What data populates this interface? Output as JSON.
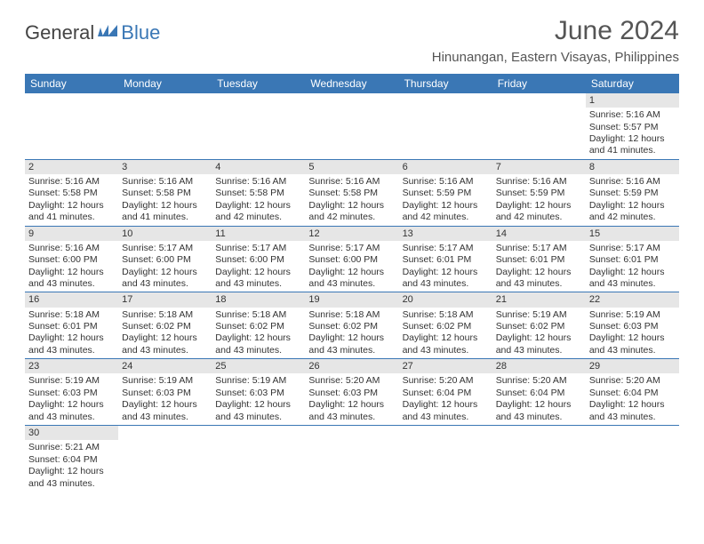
{
  "logo": {
    "part1": "General",
    "part2": "Blue"
  },
  "title": "June 2024",
  "subtitle": "Hinunangan, Eastern Visayas, Philippines",
  "colors": {
    "header_bg": "#3a77b5",
    "header_text": "#ffffff",
    "daynum_bg": "#e6e6e6",
    "border": "#3a77b5",
    "text": "#333333",
    "title_color": "#555555"
  },
  "weekdays": [
    "Sunday",
    "Monday",
    "Tuesday",
    "Wednesday",
    "Thursday",
    "Friday",
    "Saturday"
  ],
  "weeks": [
    [
      null,
      null,
      null,
      null,
      null,
      null,
      {
        "n": "1",
        "sr": "Sunrise: 5:16 AM",
        "ss": "Sunset: 5:57 PM",
        "d1": "Daylight: 12 hours",
        "d2": "and 41 minutes."
      }
    ],
    [
      {
        "n": "2",
        "sr": "Sunrise: 5:16 AM",
        "ss": "Sunset: 5:58 PM",
        "d1": "Daylight: 12 hours",
        "d2": "and 41 minutes."
      },
      {
        "n": "3",
        "sr": "Sunrise: 5:16 AM",
        "ss": "Sunset: 5:58 PM",
        "d1": "Daylight: 12 hours",
        "d2": "and 41 minutes."
      },
      {
        "n": "4",
        "sr": "Sunrise: 5:16 AM",
        "ss": "Sunset: 5:58 PM",
        "d1": "Daylight: 12 hours",
        "d2": "and 42 minutes."
      },
      {
        "n": "5",
        "sr": "Sunrise: 5:16 AM",
        "ss": "Sunset: 5:58 PM",
        "d1": "Daylight: 12 hours",
        "d2": "and 42 minutes."
      },
      {
        "n": "6",
        "sr": "Sunrise: 5:16 AM",
        "ss": "Sunset: 5:59 PM",
        "d1": "Daylight: 12 hours",
        "d2": "and 42 minutes."
      },
      {
        "n": "7",
        "sr": "Sunrise: 5:16 AM",
        "ss": "Sunset: 5:59 PM",
        "d1": "Daylight: 12 hours",
        "d2": "and 42 minutes."
      },
      {
        "n": "8",
        "sr": "Sunrise: 5:16 AM",
        "ss": "Sunset: 5:59 PM",
        "d1": "Daylight: 12 hours",
        "d2": "and 42 minutes."
      }
    ],
    [
      {
        "n": "9",
        "sr": "Sunrise: 5:16 AM",
        "ss": "Sunset: 6:00 PM",
        "d1": "Daylight: 12 hours",
        "d2": "and 43 minutes."
      },
      {
        "n": "10",
        "sr": "Sunrise: 5:17 AM",
        "ss": "Sunset: 6:00 PM",
        "d1": "Daylight: 12 hours",
        "d2": "and 43 minutes."
      },
      {
        "n": "11",
        "sr": "Sunrise: 5:17 AM",
        "ss": "Sunset: 6:00 PM",
        "d1": "Daylight: 12 hours",
        "d2": "and 43 minutes."
      },
      {
        "n": "12",
        "sr": "Sunrise: 5:17 AM",
        "ss": "Sunset: 6:00 PM",
        "d1": "Daylight: 12 hours",
        "d2": "and 43 minutes."
      },
      {
        "n": "13",
        "sr": "Sunrise: 5:17 AM",
        "ss": "Sunset: 6:01 PM",
        "d1": "Daylight: 12 hours",
        "d2": "and 43 minutes."
      },
      {
        "n": "14",
        "sr": "Sunrise: 5:17 AM",
        "ss": "Sunset: 6:01 PM",
        "d1": "Daylight: 12 hours",
        "d2": "and 43 minutes."
      },
      {
        "n": "15",
        "sr": "Sunrise: 5:17 AM",
        "ss": "Sunset: 6:01 PM",
        "d1": "Daylight: 12 hours",
        "d2": "and 43 minutes."
      }
    ],
    [
      {
        "n": "16",
        "sr": "Sunrise: 5:18 AM",
        "ss": "Sunset: 6:01 PM",
        "d1": "Daylight: 12 hours",
        "d2": "and 43 minutes."
      },
      {
        "n": "17",
        "sr": "Sunrise: 5:18 AM",
        "ss": "Sunset: 6:02 PM",
        "d1": "Daylight: 12 hours",
        "d2": "and 43 minutes."
      },
      {
        "n": "18",
        "sr": "Sunrise: 5:18 AM",
        "ss": "Sunset: 6:02 PM",
        "d1": "Daylight: 12 hours",
        "d2": "and 43 minutes."
      },
      {
        "n": "19",
        "sr": "Sunrise: 5:18 AM",
        "ss": "Sunset: 6:02 PM",
        "d1": "Daylight: 12 hours",
        "d2": "and 43 minutes."
      },
      {
        "n": "20",
        "sr": "Sunrise: 5:18 AM",
        "ss": "Sunset: 6:02 PM",
        "d1": "Daylight: 12 hours",
        "d2": "and 43 minutes."
      },
      {
        "n": "21",
        "sr": "Sunrise: 5:19 AM",
        "ss": "Sunset: 6:02 PM",
        "d1": "Daylight: 12 hours",
        "d2": "and 43 minutes."
      },
      {
        "n": "22",
        "sr": "Sunrise: 5:19 AM",
        "ss": "Sunset: 6:03 PM",
        "d1": "Daylight: 12 hours",
        "d2": "and 43 minutes."
      }
    ],
    [
      {
        "n": "23",
        "sr": "Sunrise: 5:19 AM",
        "ss": "Sunset: 6:03 PM",
        "d1": "Daylight: 12 hours",
        "d2": "and 43 minutes."
      },
      {
        "n": "24",
        "sr": "Sunrise: 5:19 AM",
        "ss": "Sunset: 6:03 PM",
        "d1": "Daylight: 12 hours",
        "d2": "and 43 minutes."
      },
      {
        "n": "25",
        "sr": "Sunrise: 5:19 AM",
        "ss": "Sunset: 6:03 PM",
        "d1": "Daylight: 12 hours",
        "d2": "and 43 minutes."
      },
      {
        "n": "26",
        "sr": "Sunrise: 5:20 AM",
        "ss": "Sunset: 6:03 PM",
        "d1": "Daylight: 12 hours",
        "d2": "and 43 minutes."
      },
      {
        "n": "27",
        "sr": "Sunrise: 5:20 AM",
        "ss": "Sunset: 6:04 PM",
        "d1": "Daylight: 12 hours",
        "d2": "and 43 minutes."
      },
      {
        "n": "28",
        "sr": "Sunrise: 5:20 AM",
        "ss": "Sunset: 6:04 PM",
        "d1": "Daylight: 12 hours",
        "d2": "and 43 minutes."
      },
      {
        "n": "29",
        "sr": "Sunrise: 5:20 AM",
        "ss": "Sunset: 6:04 PM",
        "d1": "Daylight: 12 hours",
        "d2": "and 43 minutes."
      }
    ],
    [
      {
        "n": "30",
        "sr": "Sunrise: 5:21 AM",
        "ss": "Sunset: 6:04 PM",
        "d1": "Daylight: 12 hours",
        "d2": "and 43 minutes."
      },
      null,
      null,
      null,
      null,
      null,
      null
    ]
  ]
}
